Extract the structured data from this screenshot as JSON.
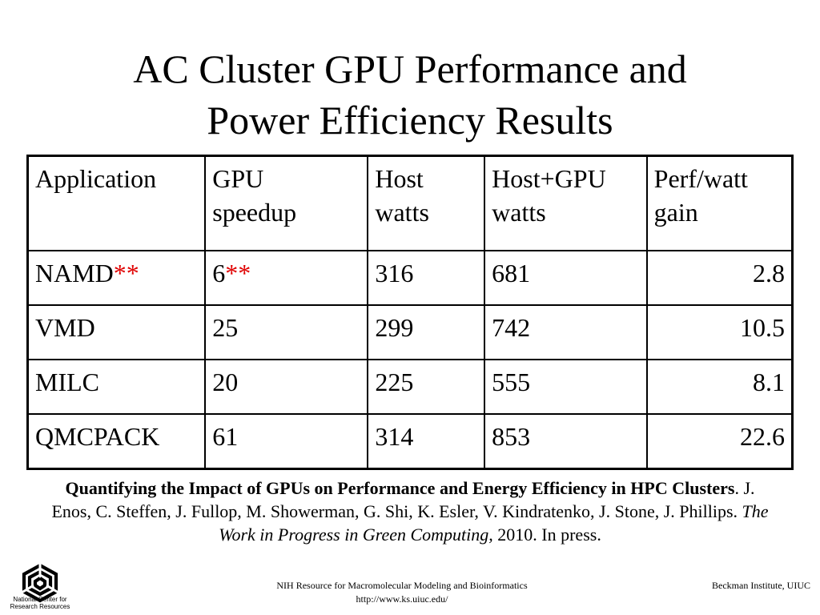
{
  "title": {
    "line1": "AC Cluster GPU Performance and",
    "line2": "Power Efficiency Results"
  },
  "table": {
    "headers": [
      {
        "line1": "Application",
        "line2": ""
      },
      {
        "line1": "GPU",
        "line2": "speedup"
      },
      {
        "line1": "Host",
        "line2": "watts"
      },
      {
        "line1": "Host+GPU",
        "line2": "watts"
      },
      {
        "line1": "Perf/watt",
        "line2": "gain"
      }
    ],
    "rows": [
      {
        "application": "NAMD",
        "application_mark": "**",
        "speedup": "6",
        "speedup_mark": "**",
        "host_watts": "316",
        "host_gpu_watts": "681",
        "perf_watt_gain": "2.8"
      },
      {
        "application": "VMD",
        "application_mark": "",
        "speedup": "25",
        "speedup_mark": "",
        "host_watts": "299",
        "host_gpu_watts": "742",
        "perf_watt_gain": "10.5"
      },
      {
        "application": "MILC",
        "application_mark": "",
        "speedup": "20",
        "speedup_mark": "",
        "host_watts": "225",
        "host_gpu_watts": "555",
        "perf_watt_gain": "8.1"
      },
      {
        "application": "QMCPACK",
        "application_mark": "",
        "speedup": "61",
        "speedup_mark": "",
        "host_watts": "314",
        "host_gpu_watts": "853",
        "perf_watt_gain": "22.6"
      }
    ],
    "mark_color": "#e00000"
  },
  "citation": {
    "paper_title": "Quantifying the Impact of GPUs on Performance and Energy Efficiency in HPC Clusters",
    "authors": ". J. Enos, C. Steffen, J. Fullop, M. Showerman, G. Shi, K. Esler, V. Kindratenko, J. Stone, J. Phillips. ",
    "venue": "The Work in Progress in Green Computing,",
    "status": " 2010. In press."
  },
  "footer": {
    "logo_icon": "ncrr-logo-icon",
    "logo_text": "National Center for Research Resources",
    "center_line1": "NIH Resource for Macromolecular Modeling and Bioinformatics",
    "center_line2": "http://www.ks.uiuc.edu/",
    "right": "Beckman Institute, UIUC"
  }
}
